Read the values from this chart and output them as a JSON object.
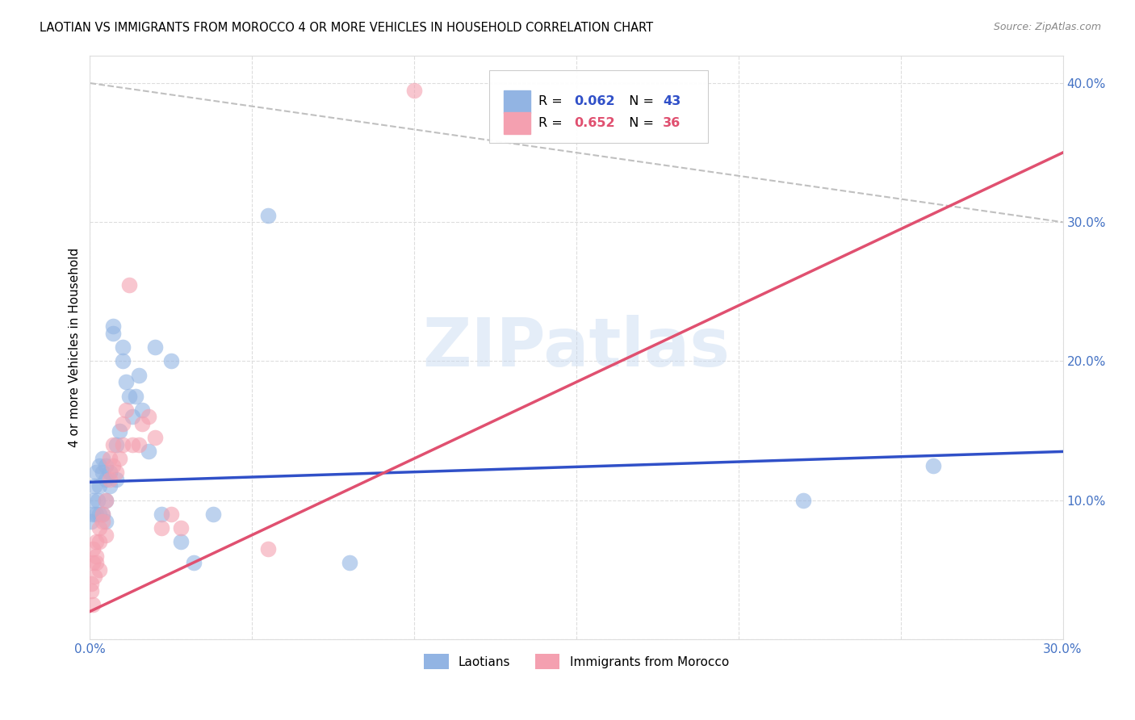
{
  "title": "LAOTIAN VS IMMIGRANTS FROM MOROCCO 4 OR MORE VEHICLES IN HOUSEHOLD CORRELATION CHART",
  "source": "Source: ZipAtlas.com",
  "ylabel": "4 or more Vehicles in Household",
  "legend_label_1": "Laotians",
  "legend_label_2": "Immigrants from Morocco",
  "r1": 0.062,
  "n1": 43,
  "r2": 0.652,
  "n2": 36,
  "color1": "#92b4e3",
  "color2": "#f4a0b0",
  "line_color1": "#3050c8",
  "line_color2": "#e05070",
  "xlim": [
    0.0,
    0.3
  ],
  "ylim": [
    0.0,
    0.42
  ],
  "xtick_vals": [
    0.0,
    0.05,
    0.1,
    0.15,
    0.2,
    0.25,
    0.3
  ],
  "ytick_vals": [
    0.0,
    0.1,
    0.2,
    0.3,
    0.4
  ],
  "watermark": "ZIPatlas",
  "blue_line_y0": 0.113,
  "blue_line_y1": 0.135,
  "pink_line_y0": 0.02,
  "pink_line_y1": 0.35,
  "lao_x": [
    0.0005,
    0.001,
    0.001,
    0.0015,
    0.002,
    0.002,
    0.0025,
    0.003,
    0.003,
    0.003,
    0.004,
    0.004,
    0.004,
    0.005,
    0.005,
    0.005,
    0.005,
    0.006,
    0.006,
    0.007,
    0.007,
    0.008,
    0.008,
    0.009,
    0.01,
    0.01,
    0.011,
    0.012,
    0.013,
    0.014,
    0.015,
    0.016,
    0.018,
    0.02,
    0.022,
    0.025,
    0.028,
    0.032,
    0.038,
    0.055,
    0.08,
    0.22,
    0.26
  ],
  "lao_y": [
    0.085,
    0.1,
    0.09,
    0.11,
    0.12,
    0.09,
    0.1,
    0.125,
    0.11,
    0.09,
    0.13,
    0.12,
    0.09,
    0.125,
    0.115,
    0.1,
    0.085,
    0.12,
    0.11,
    0.22,
    0.225,
    0.14,
    0.115,
    0.15,
    0.21,
    0.2,
    0.185,
    0.175,
    0.16,
    0.175,
    0.19,
    0.165,
    0.135,
    0.21,
    0.09,
    0.2,
    0.07,
    0.055,
    0.09,
    0.305,
    0.055,
    0.1,
    0.125
  ],
  "mor_x": [
    0.0003,
    0.0005,
    0.001,
    0.001,
    0.001,
    0.0015,
    0.002,
    0.002,
    0.002,
    0.003,
    0.003,
    0.003,
    0.004,
    0.004,
    0.005,
    0.005,
    0.006,
    0.006,
    0.007,
    0.007,
    0.008,
    0.009,
    0.01,
    0.01,
    0.011,
    0.012,
    0.013,
    0.015,
    0.016,
    0.018,
    0.02,
    0.022,
    0.025,
    0.028,
    0.055,
    0.1
  ],
  "mor_y": [
    0.04,
    0.035,
    0.055,
    0.065,
    0.025,
    0.045,
    0.055,
    0.07,
    0.06,
    0.07,
    0.08,
    0.05,
    0.085,
    0.09,
    0.1,
    0.075,
    0.13,
    0.115,
    0.14,
    0.125,
    0.12,
    0.13,
    0.14,
    0.155,
    0.165,
    0.255,
    0.14,
    0.14,
    0.155,
    0.16,
    0.145,
    0.08,
    0.09,
    0.08,
    0.065,
    0.395
  ]
}
